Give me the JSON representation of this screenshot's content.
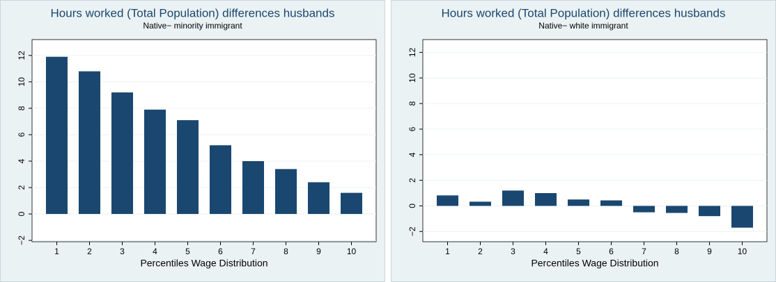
{
  "chart_data": [
    {
      "type": "bar",
      "title": "Hours worked (Total Population) differences husbands",
      "subtitle": "Native− minority immigrant",
      "x_label": "Percentiles Wage Distribution",
      "categories": [
        "1",
        "2",
        "3",
        "4",
        "5",
        "6",
        "7",
        "8",
        "9",
        "10"
      ],
      "values": [
        11.9,
        10.8,
        9.2,
        7.9,
        7.1,
        5.2,
        4.0,
        3.4,
        2.4,
        1.6
      ],
      "color": "#1a476f",
      "ylim": [
        -2.1,
        13.2
      ],
      "yticks": [
        {
          "value": -2,
          "label": "−2"
        },
        0,
        2,
        4,
        6,
        8,
        10,
        12
      ],
      "grid": true
    },
    {
      "type": "bar",
      "title": "Hours worked (Total Population) differences husbands",
      "subtitle": "Native− white immigrant",
      "x_label": "Percentiles Wage Distribution",
      "categories": [
        "1",
        "2",
        "3",
        "4",
        "5",
        "6",
        "7",
        "8",
        "9",
        "10"
      ],
      "values": [
        0.82,
        0.33,
        1.2,
        1.0,
        0.5,
        0.43,
        -0.5,
        -0.55,
        -0.8,
        -1.7
      ],
      "color": "#1a476f",
      "ylim": [
        -2.8,
        13.0
      ],
      "yticks": [
        {
          "value": -2,
          "label": "−2"
        },
        0,
        2,
        4,
        6,
        8,
        10,
        12
      ],
      "grid": true
    }
  ]
}
